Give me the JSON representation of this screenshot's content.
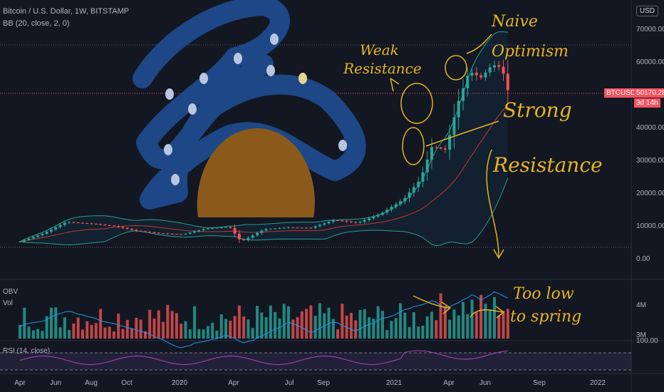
{
  "header": {
    "symbol_line": "Bitcoin / U.S. Dollar, 1W, BITSTAMP",
    "indicator_line": "BB (20, close, 2, 0)",
    "currency_button": "USD"
  },
  "price_tag": {
    "symbol": "BTCUSD",
    "price": "50170.28",
    "countdown": "3d 14h"
  },
  "panes": {
    "obv_label": "OBV",
    "vol_label": "Vol",
    "vol_tick_high": "4M",
    "vol_tick_low": "3M",
    "rsi_label": "RSI (14, close)",
    "rsi_tick": "100.00"
  },
  "annotations": {
    "weak_line1": "Weak",
    "weak_line2": "Resistance",
    "naive_line1": "Naive",
    "naive_line2": "Optimism",
    "strong_line1": "Strong",
    "strong_line2": "Resistance",
    "spring_line1": "Too low",
    "spring_line2": "to spring"
  },
  "colors": {
    "background": "#131722",
    "up": "#26a69a",
    "down": "#ef5350",
    "bb_band": "#2a9d8f",
    "bb_basis": "#c0392b",
    "obv": "#2196f3",
    "rsi": "#ab47bc",
    "annotation": "#e6b422",
    "mountain": "#8b5a1b",
    "sky": "#1e4a8c"
  },
  "chart_data": {
    "type": "candlestick",
    "title": "Bitcoin / U.S. Dollar, 1W, BITSTAMP",
    "ylim": [
      0,
      70000
    ],
    "y_ticks": [
      "70000.00",
      "60000.00",
      "50000.00",
      "40000.00",
      "30000.00",
      "20000.00",
      "10000.00",
      "0.00"
    ],
    "x_ticks": [
      "Apr",
      "Jun",
      "Aug",
      "Oct",
      "2020",
      "Apr",
      "Jul",
      "Sep",
      "2021",
      "Apr",
      "Jun",
      "Sep",
      "2022"
    ],
    "last_price": 50170.28,
    "series": [
      {
        "name": "BTCUSD",
        "close_points": [
          [
            2019.25,
            5000
          ],
          [
            2019.35,
            7500
          ],
          [
            2019.45,
            11000
          ],
          [
            2019.55,
            10500
          ],
          [
            2019.65,
            9800
          ],
          [
            2019.75,
            8300
          ],
          [
            2019.85,
            7500
          ],
          [
            2019.95,
            7200
          ],
          [
            2020.05,
            9000
          ],
          [
            2020.15,
            9500
          ],
          [
            2020.2,
            5000
          ],
          [
            2020.3,
            8800
          ],
          [
            2020.4,
            9300
          ],
          [
            2020.5,
            9200
          ],
          [
            2020.6,
            11600
          ],
          [
            2020.7,
            10700
          ],
          [
            2020.8,
            13500
          ],
          [
            2020.9,
            18000
          ],
          [
            2020.97,
            24000
          ],
          [
            2021.02,
            34000
          ],
          [
            2021.08,
            33000
          ],
          [
            2021.13,
            47000
          ],
          [
            2021.18,
            57000
          ],
          [
            2021.23,
            55000
          ],
          [
            2021.28,
            59000
          ],
          [
            2021.32,
            58000
          ],
          [
            2021.35,
            50170
          ]
        ]
      },
      {
        "name": "BB",
        "note": "20, close, 2, 0"
      },
      {
        "name": "OBV"
      },
      {
        "name": "Vol"
      },
      {
        "name": "RSI (14, close)"
      }
    ]
  }
}
